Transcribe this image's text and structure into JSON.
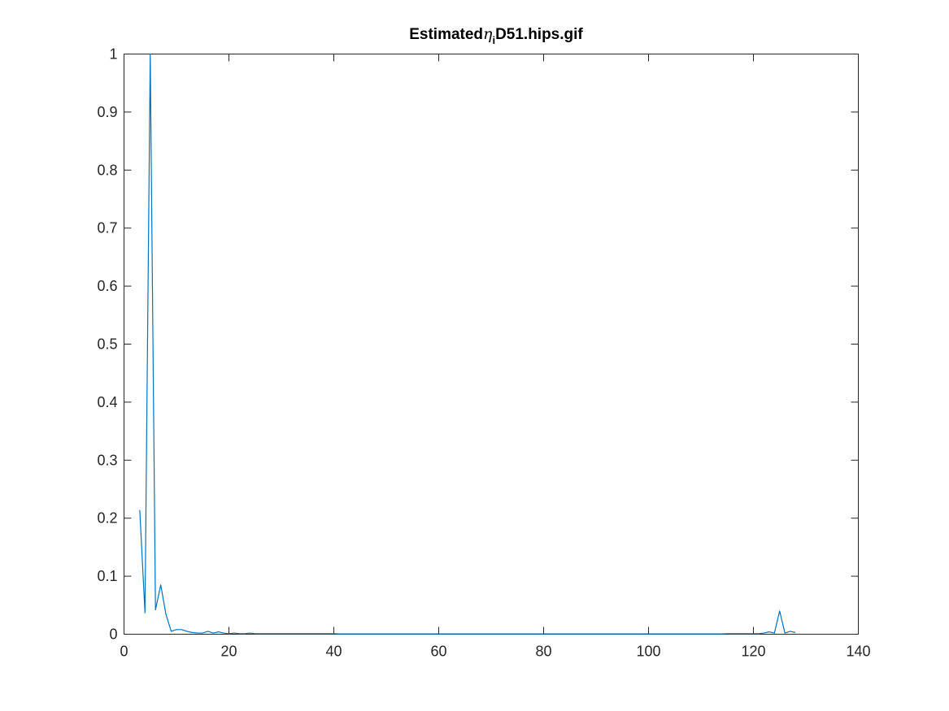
{
  "chart_data": {
    "type": "line",
    "title": {
      "prefix": "Estimated",
      "symbol": "η",
      "subscript": "i",
      "suffix": "D51.hips.gif"
    },
    "xlabel": "",
    "ylabel": "",
    "xlim": [
      0,
      140
    ],
    "ylim": [
      0,
      1
    ],
    "xticks": [
      0,
      20,
      40,
      60,
      80,
      100,
      120,
      140
    ],
    "yticks": [
      0,
      0.1,
      0.2,
      0.3,
      0.4,
      0.5,
      0.6,
      0.7,
      0.8,
      0.9,
      1
    ],
    "xtick_labels": [
      "0",
      "20",
      "40",
      "60",
      "80",
      "100",
      "120",
      "140"
    ],
    "ytick_labels": [
      "0",
      "0.1",
      "0.2",
      "0.3",
      "0.4",
      "0.5",
      "0.6",
      "0.7",
      "0.8",
      "0.9",
      "1"
    ],
    "grid": false,
    "legend": "none",
    "series": [
      {
        "color": "#0072BD",
        "x": [
          3,
          4,
          5,
          6,
          7,
          8,
          9,
          10,
          11,
          12,
          13,
          14,
          15,
          16,
          17,
          18,
          19,
          20,
          21,
          22,
          23,
          24,
          25,
          26,
          27,
          28,
          29,
          30,
          31,
          32,
          33,
          34,
          35,
          36,
          37,
          38,
          39,
          40,
          41,
          42,
          43,
          44,
          45,
          46,
          47,
          48,
          49,
          50,
          51,
          52,
          53,
          54,
          55,
          56,
          57,
          58,
          59,
          60,
          61,
          62,
          63,
          64,
          65,
          66,
          67,
          68,
          69,
          70,
          71,
          72,
          73,
          74,
          75,
          76,
          77,
          78,
          79,
          80,
          81,
          82,
          83,
          84,
          85,
          86,
          87,
          88,
          89,
          90,
          91,
          92,
          93,
          94,
          95,
          96,
          97,
          98,
          99,
          100,
          101,
          102,
          103,
          104,
          105,
          106,
          107,
          108,
          109,
          110,
          111,
          112,
          113,
          114,
          115,
          116,
          117,
          118,
          119,
          120,
          121,
          122,
          123,
          124,
          125,
          126,
          127,
          128
        ],
        "y": [
          0.214,
          0.037,
          1.0,
          0.042,
          0.085,
          0.034,
          0.005,
          0.008,
          0.008,
          0.005,
          0.003,
          0.002,
          0.002,
          0.005,
          0.002,
          0.004,
          0.002,
          0.001,
          0.002,
          0.001,
          0.001,
          0.002,
          0.001,
          0.001,
          0.001,
          0.001,
          0.001,
          0.001,
          0.001,
          0.001,
          0.001,
          0.001,
          0.001,
          0.001,
          0.001,
          0.001,
          0.001,
          0.001,
          0.0005,
          0.0005,
          0.0005,
          0.0005,
          0.0005,
          0.0005,
          0.0005,
          0.0005,
          0.0005,
          0.0005,
          0.0005,
          0.0005,
          0.0005,
          0.0005,
          0.0005,
          0.0005,
          0.0005,
          0.0005,
          0.0005,
          0.0005,
          0.0005,
          0.0005,
          0.0005,
          0.0005,
          0.0005,
          0.0005,
          0.0005,
          0.0005,
          0.0005,
          0.0005,
          0.0005,
          0.0005,
          0.0005,
          0.0005,
          0.0005,
          0.0005,
          0.0005,
          0.0005,
          0.0005,
          0.0005,
          0.0005,
          0.0005,
          0.0005,
          0.0005,
          0.0005,
          0.0005,
          0.0005,
          0.0005,
          0.0005,
          0.0005,
          0.0005,
          0.0005,
          0.0005,
          0.0005,
          0.0005,
          0.0005,
          0.0005,
          0.0005,
          0.0005,
          0.0005,
          0.0005,
          0.0005,
          0.0005,
          0.0005,
          0.0005,
          0.0005,
          0.0005,
          0.0005,
          0.0005,
          0.0005,
          0.0005,
          0.0005,
          0.0005,
          0.0005,
          0.001,
          0.001,
          0.001,
          0.001,
          0.001,
          0.001,
          0.001,
          0.002,
          0.004,
          0.002,
          0.04,
          0.002,
          0.005,
          0.003
        ]
      }
    ]
  }
}
